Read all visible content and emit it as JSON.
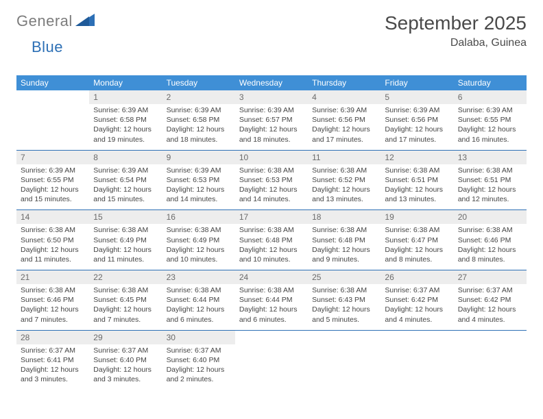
{
  "logo": {
    "word1": "General",
    "word2": "Blue",
    "shape_color": "#2c6fb5"
  },
  "title": "September 2025",
  "location": "Dalaba, Guinea",
  "colors": {
    "header_bg": "#3f8fd6",
    "header_text": "#ffffff",
    "daynum_bg": "#ededed",
    "daynum_text": "#6a6a6a",
    "rule": "#2c6fb5",
    "body_text": "#444444",
    "page_bg": "#ffffff"
  },
  "typography": {
    "title_fontsize": 28,
    "location_fontsize": 16,
    "header_fontsize": 12,
    "daynum_fontsize": 12,
    "detail_fontsize": 10.5
  },
  "day_headers": [
    "Sunday",
    "Monday",
    "Tuesday",
    "Wednesday",
    "Thursday",
    "Friday",
    "Saturday"
  ],
  "weeks": [
    [
      null,
      {
        "n": "1",
        "sr": "6:39 AM",
        "ss": "6:58 PM",
        "dl": "12 hours and 19 minutes."
      },
      {
        "n": "2",
        "sr": "6:39 AM",
        "ss": "6:58 PM",
        "dl": "12 hours and 18 minutes."
      },
      {
        "n": "3",
        "sr": "6:39 AM",
        "ss": "6:57 PM",
        "dl": "12 hours and 18 minutes."
      },
      {
        "n": "4",
        "sr": "6:39 AM",
        "ss": "6:56 PM",
        "dl": "12 hours and 17 minutes."
      },
      {
        "n": "5",
        "sr": "6:39 AM",
        "ss": "6:56 PM",
        "dl": "12 hours and 17 minutes."
      },
      {
        "n": "6",
        "sr": "6:39 AM",
        "ss": "6:55 PM",
        "dl": "12 hours and 16 minutes."
      }
    ],
    [
      {
        "n": "7",
        "sr": "6:39 AM",
        "ss": "6:55 PM",
        "dl": "12 hours and 15 minutes."
      },
      {
        "n": "8",
        "sr": "6:39 AM",
        "ss": "6:54 PM",
        "dl": "12 hours and 15 minutes."
      },
      {
        "n": "9",
        "sr": "6:39 AM",
        "ss": "6:53 PM",
        "dl": "12 hours and 14 minutes."
      },
      {
        "n": "10",
        "sr": "6:38 AM",
        "ss": "6:53 PM",
        "dl": "12 hours and 14 minutes."
      },
      {
        "n": "11",
        "sr": "6:38 AM",
        "ss": "6:52 PM",
        "dl": "12 hours and 13 minutes."
      },
      {
        "n": "12",
        "sr": "6:38 AM",
        "ss": "6:51 PM",
        "dl": "12 hours and 13 minutes."
      },
      {
        "n": "13",
        "sr": "6:38 AM",
        "ss": "6:51 PM",
        "dl": "12 hours and 12 minutes."
      }
    ],
    [
      {
        "n": "14",
        "sr": "6:38 AM",
        "ss": "6:50 PM",
        "dl": "12 hours and 11 minutes."
      },
      {
        "n": "15",
        "sr": "6:38 AM",
        "ss": "6:49 PM",
        "dl": "12 hours and 11 minutes."
      },
      {
        "n": "16",
        "sr": "6:38 AM",
        "ss": "6:49 PM",
        "dl": "12 hours and 10 minutes."
      },
      {
        "n": "17",
        "sr": "6:38 AM",
        "ss": "6:48 PM",
        "dl": "12 hours and 10 minutes."
      },
      {
        "n": "18",
        "sr": "6:38 AM",
        "ss": "6:48 PM",
        "dl": "12 hours and 9 minutes."
      },
      {
        "n": "19",
        "sr": "6:38 AM",
        "ss": "6:47 PM",
        "dl": "12 hours and 8 minutes."
      },
      {
        "n": "20",
        "sr": "6:38 AM",
        "ss": "6:46 PM",
        "dl": "12 hours and 8 minutes."
      }
    ],
    [
      {
        "n": "21",
        "sr": "6:38 AM",
        "ss": "6:46 PM",
        "dl": "12 hours and 7 minutes."
      },
      {
        "n": "22",
        "sr": "6:38 AM",
        "ss": "6:45 PM",
        "dl": "12 hours and 7 minutes."
      },
      {
        "n": "23",
        "sr": "6:38 AM",
        "ss": "6:44 PM",
        "dl": "12 hours and 6 minutes."
      },
      {
        "n": "24",
        "sr": "6:38 AM",
        "ss": "6:44 PM",
        "dl": "12 hours and 6 minutes."
      },
      {
        "n": "25",
        "sr": "6:38 AM",
        "ss": "6:43 PM",
        "dl": "12 hours and 5 minutes."
      },
      {
        "n": "26",
        "sr": "6:37 AM",
        "ss": "6:42 PM",
        "dl": "12 hours and 4 minutes."
      },
      {
        "n": "27",
        "sr": "6:37 AM",
        "ss": "6:42 PM",
        "dl": "12 hours and 4 minutes."
      }
    ],
    [
      {
        "n": "28",
        "sr": "6:37 AM",
        "ss": "6:41 PM",
        "dl": "12 hours and 3 minutes."
      },
      {
        "n": "29",
        "sr": "6:37 AM",
        "ss": "6:40 PM",
        "dl": "12 hours and 3 minutes."
      },
      {
        "n": "30",
        "sr": "6:37 AM",
        "ss": "6:40 PM",
        "dl": "12 hours and 2 minutes."
      },
      null,
      null,
      null,
      null
    ]
  ],
  "labels": {
    "sunrise": "Sunrise:",
    "sunset": "Sunset:",
    "daylight": "Daylight:"
  }
}
